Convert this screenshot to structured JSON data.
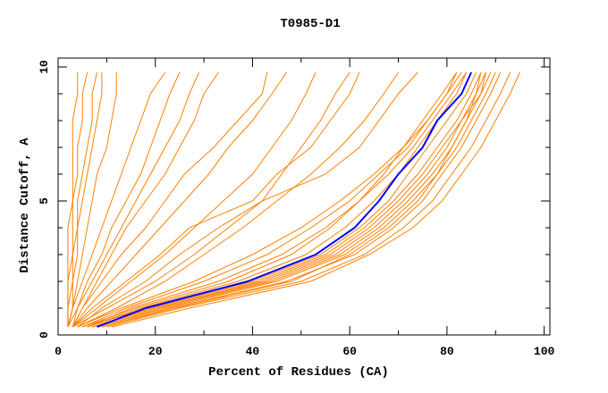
{
  "chart_data": {
    "type": "line",
    "title": "T0985-D1",
    "xlabel": "Percent of Residues (CA)",
    "ylabel": "Distance Cutoff, A",
    "xlim": [
      0,
      100
    ],
    "ylim": [
      0,
      10
    ],
    "xticks": [
      "0",
      "20",
      "40",
      "60",
      "80",
      "100"
    ],
    "yticks": [
      "0",
      "5",
      "10"
    ],
    "grid": false,
    "colors": {
      "highlight": "#0000ff",
      "others": "#ff8000"
    },
    "y_levels": [
      0.3,
      1,
      2,
      3,
      4,
      5,
      6,
      7,
      8,
      9,
      9.8
    ],
    "highlight_series": {
      "x": [
        8,
        18,
        39,
        53,
        61,
        66,
        70,
        75,
        78,
        83,
        85
      ]
    },
    "series": [
      {
        "x": [
          5,
          16,
          35,
          48,
          56,
          62,
          67,
          71,
          75,
          79,
          82
        ]
      },
      {
        "x": [
          6,
          17,
          37,
          51,
          59,
          65,
          70,
          74,
          78,
          82,
          84
        ]
      },
      {
        "x": [
          7,
          19,
          41,
          55,
          63,
          69,
          74,
          78,
          82,
          85,
          87
        ]
      },
      {
        "x": [
          8,
          21,
          44,
          58,
          66,
          72,
          77,
          81,
          84,
          87,
          89
        ]
      },
      {
        "x": [
          9,
          23,
          47,
          61,
          69,
          75,
          79,
          83,
          86,
          89,
          91
        ]
      },
      {
        "x": [
          10,
          25,
          50,
          63,
          71,
          77,
          81,
          85,
          88,
          91,
          93
        ]
      },
      {
        "x": [
          11,
          27,
          52,
          64,
          73,
          79,
          83,
          87,
          90,
          93,
          95
        ]
      },
      {
        "x": [
          6,
          15,
          33,
          46,
          55,
          62,
          68,
          73,
          77,
          81,
          84
        ]
      },
      {
        "x": [
          7,
          20,
          42,
          56,
          64,
          70,
          75,
          79,
          83,
          86,
          88
        ]
      },
      {
        "x": [
          5,
          14,
          30,
          43,
          52,
          60,
          66,
          72,
          76,
          80,
          83
        ]
      },
      {
        "x": [
          8,
          22,
          45,
          59,
          67,
          73,
          78,
          82,
          85,
          88,
          90
        ]
      },
      {
        "x": [
          4,
          13,
          28,
          40,
          50,
          58,
          65,
          71,
          76,
          80,
          82
        ]
      },
      {
        "x": [
          9,
          24,
          48,
          60,
          68,
          74,
          78,
          81,
          84,
          86,
          87
        ]
      },
      {
        "x": [
          6,
          18,
          40,
          54,
          62,
          68,
          72,
          76,
          80,
          84,
          86
        ]
      },
      {
        "x": [
          7,
          20,
          43,
          57,
          65,
          71,
          76,
          80,
          83,
          87,
          88
        ]
      },
      {
        "x": [
          4,
          12,
          22,
          30,
          38,
          45,
          52,
          58,
          63,
          67,
          70
        ]
      },
      {
        "x": [
          3,
          10,
          20,
          28,
          35,
          42,
          55,
          62,
          66,
          70,
          74
        ]
      },
      {
        "x": [
          4,
          9,
          18,
          25,
          33,
          42,
          46,
          50,
          54,
          57,
          60
        ]
      },
      {
        "x": [
          3,
          8,
          15,
          22,
          28,
          34,
          40,
          44,
          48,
          51,
          53
        ]
      },
      {
        "x": [
          3,
          7,
          14,
          21,
          27,
          40,
          45,
          52,
          56,
          60,
          62
        ]
      },
      {
        "x": [
          3,
          6,
          11,
          16,
          21,
          26,
          31,
          35,
          40,
          44,
          47
        ]
      },
      {
        "x": [
          3,
          5,
          9,
          13,
          18,
          22,
          26,
          32,
          37,
          42,
          43
        ]
      },
      {
        "x": [
          3,
          5,
          8,
          11,
          14,
          18,
          22,
          25,
          28,
          30,
          33
        ]
      },
      {
        "x": [
          3,
          4,
          7,
          10,
          13,
          16,
          19,
          22,
          25,
          27,
          29
        ]
      },
      {
        "x": [
          2,
          4,
          6,
          9,
          11,
          14,
          17,
          19,
          21,
          23,
          25
        ]
      },
      {
        "x": [
          2,
          3,
          5,
          7,
          9,
          11,
          13,
          15,
          17,
          19,
          22
        ]
      },
      {
        "x": [
          2,
          3,
          4,
          5,
          6,
          7,
          8,
          10,
          11,
          12,
          12
        ]
      },
      {
        "x": [
          2,
          3,
          3,
          4,
          4,
          5,
          6,
          7,
          8,
          9,
          9
        ]
      },
      {
        "x": [
          2,
          2,
          3,
          3,
          4,
          4,
          5,
          6,
          7,
          7,
          8
        ]
      },
      {
        "x": [
          2,
          2,
          2,
          3,
          3,
          3,
          4,
          4,
          5,
          5,
          6
        ]
      },
      {
        "x": [
          2,
          2,
          2,
          2,
          2,
          3,
          3,
          3,
          3,
          4,
          4
        ]
      }
    ]
  }
}
